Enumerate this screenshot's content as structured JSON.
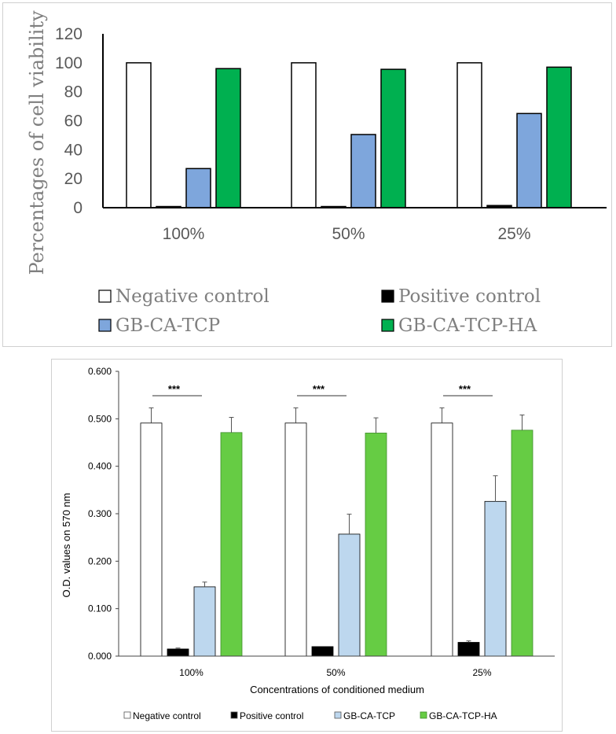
{
  "chart_data": [
    {
      "type": "bar",
      "title": "",
      "xlabel": "",
      "ylabel": "Percentages of cell viability",
      "ylim": [
        0,
        120
      ],
      "yticks": [
        "0",
        "20",
        "40",
        "60",
        "80",
        "100",
        "120"
      ],
      "categories": [
        "100%",
        "50%",
        "25%"
      ],
      "series": [
        {
          "name": "Negative control",
          "color": "#ffffff",
          "values": [
            100,
            100,
            100
          ]
        },
        {
          "name": "Positive control",
          "color": "#000000",
          "values": [
            0.8,
            0.8,
            1.5
          ]
        },
        {
          "name": "GB-CA-TCP",
          "color": "#7ea6dc",
          "values": [
            27,
            50.5,
            65
          ]
        },
        {
          "name": "GB-CA-TCP-HA",
          "color": "#00b050",
          "values": [
            96,
            95.5,
            97
          ]
        }
      ],
      "legend": "bottom"
    },
    {
      "type": "bar",
      "title": "",
      "xlabel": "Concentrations of conditioned medium",
      "ylabel": "O.D. values on 570 nm",
      "ylim": [
        0,
        0.6
      ],
      "yticks": [
        "0.000",
        "0.100",
        "0.200",
        "0.300",
        "0.400",
        "0.500",
        "0.600"
      ],
      "categories": [
        "100%",
        "50%",
        "25%"
      ],
      "series": [
        {
          "name": "Negative control",
          "color": "#ffffff",
          "values": [
            0.491,
            0.491,
            0.491
          ],
          "errors": [
            0.032,
            0.032,
            0.032
          ]
        },
        {
          "name": "Positive control",
          "color": "#000000",
          "values": [
            0.015,
            0.02,
            0.029
          ],
          "errors": [
            0.002,
            0.0,
            0.003
          ]
        },
        {
          "name": "GB-CA-TCP",
          "color": "#bdd7ee",
          "values": [
            0.146,
            0.257,
            0.326
          ],
          "errors": [
            0.01,
            0.042,
            0.054
          ]
        },
        {
          "name": "GB-CA-TCP-HA",
          "color": "#66cc44",
          "values": [
            0.471,
            0.47,
            0.476
          ],
          "errors": [
            0.032,
            0.032,
            0.032
          ]
        }
      ],
      "significance": [
        "***",
        "***",
        "***"
      ],
      "legend": "bottom"
    }
  ]
}
